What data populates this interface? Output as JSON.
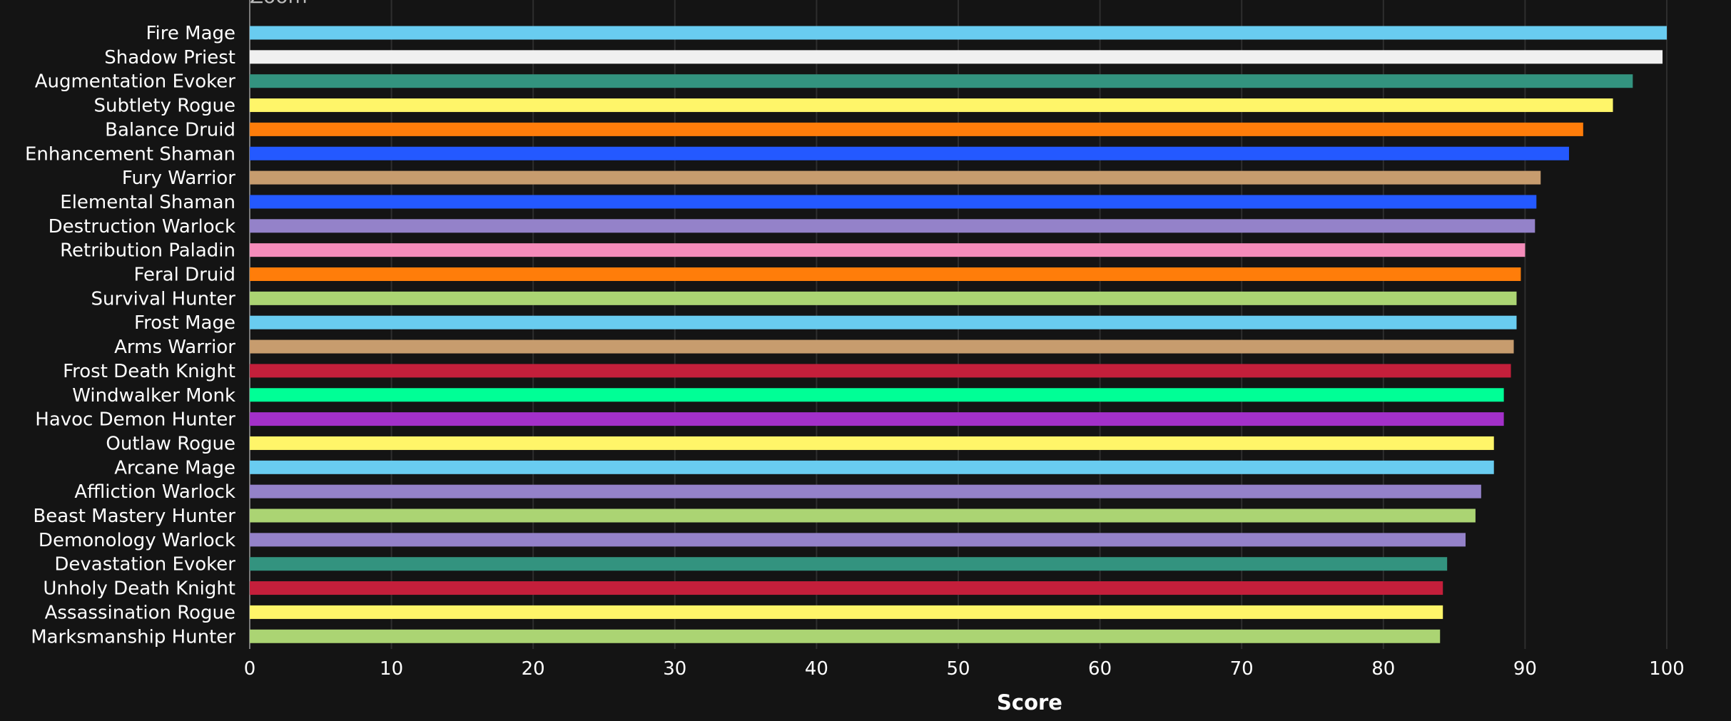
{
  "top_text": "Zoom",
  "chart_data": {
    "type": "bar",
    "orientation": "horizontal",
    "xlabel": "Score",
    "xlim": [
      0,
      100
    ],
    "xticks": [
      0,
      10,
      20,
      30,
      40,
      50,
      60,
      70,
      80,
      90,
      100
    ],
    "grid": true,
    "categories": [
      "Fire Mage",
      "Shadow Priest",
      "Augmentation Evoker",
      "Subtlety Rogue",
      "Balance Druid",
      "Enhancement Shaman",
      "Fury Warrior",
      "Elemental Shaman",
      "Destruction Warlock",
      "Retribution Paladin",
      "Feral Druid",
      "Survival Hunter",
      "Frost Mage",
      "Arms Warrior",
      "Frost Death Knight",
      "Windwalker Monk",
      "Havoc Demon Hunter",
      "Outlaw Rogue",
      "Arcane Mage",
      "Affliction Warlock",
      "Beast Mastery Hunter",
      "Demonology Warlock",
      "Devastation Evoker",
      "Unholy Death Knight",
      "Assassination Rogue",
      "Marksmanship Hunter"
    ],
    "values": [
      100,
      99.7,
      97.6,
      96.2,
      94.1,
      93.1,
      91.1,
      90.8,
      90.7,
      90.0,
      89.7,
      89.4,
      89.4,
      89.2,
      89.0,
      88.5,
      88.5,
      87.8,
      87.8,
      86.9,
      86.5,
      85.8,
      84.5,
      84.2,
      84.2,
      84.0
    ],
    "colors": [
      "#69CCF0",
      "#F0F0F0",
      "#33937F",
      "#FFF569",
      "#FF7D0A",
      "#2459FF",
      "#C79C6E",
      "#2459FF",
      "#9482C9",
      "#F58CBA",
      "#FF7D0A",
      "#ABD473",
      "#69CCF0",
      "#C79C6E",
      "#C41F3B",
      "#00FF96",
      "#A330C9",
      "#FFF569",
      "#69CCF0",
      "#9482C9",
      "#ABD473",
      "#9482C9",
      "#33937F",
      "#C41F3B",
      "#FFF569",
      "#ABD473"
    ]
  }
}
